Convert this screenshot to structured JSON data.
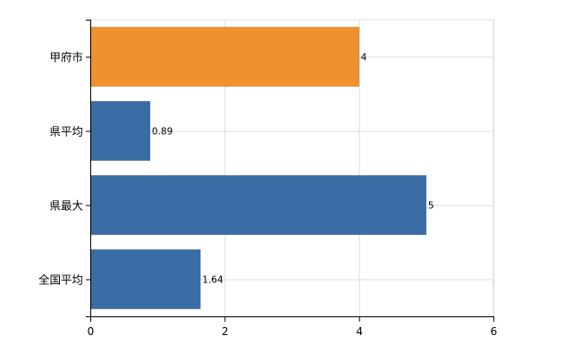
{
  "chart_data": {
    "type": "bar",
    "orientation": "horizontal",
    "title": "",
    "xlabel": "",
    "ylabel": "",
    "categories": [
      "甲府市",
      "県平均",
      "県最大",
      "全国平均"
    ],
    "values": [
      4,
      0.89,
      5,
      1.64
    ],
    "data_labels": [
      "4",
      "0.89",
      "5",
      "1.64"
    ],
    "colors": [
      "#f0912e",
      "#3a6ca6",
      "#3a6ca6",
      "#3a6ca6"
    ],
    "xlim": [
      0,
      6
    ],
    "x_ticks": [
      0,
      2,
      4,
      6
    ],
    "x_tick_labels": [
      "0",
      "2",
      "4",
      "6"
    ],
    "grid": true,
    "legend": "none"
  }
}
